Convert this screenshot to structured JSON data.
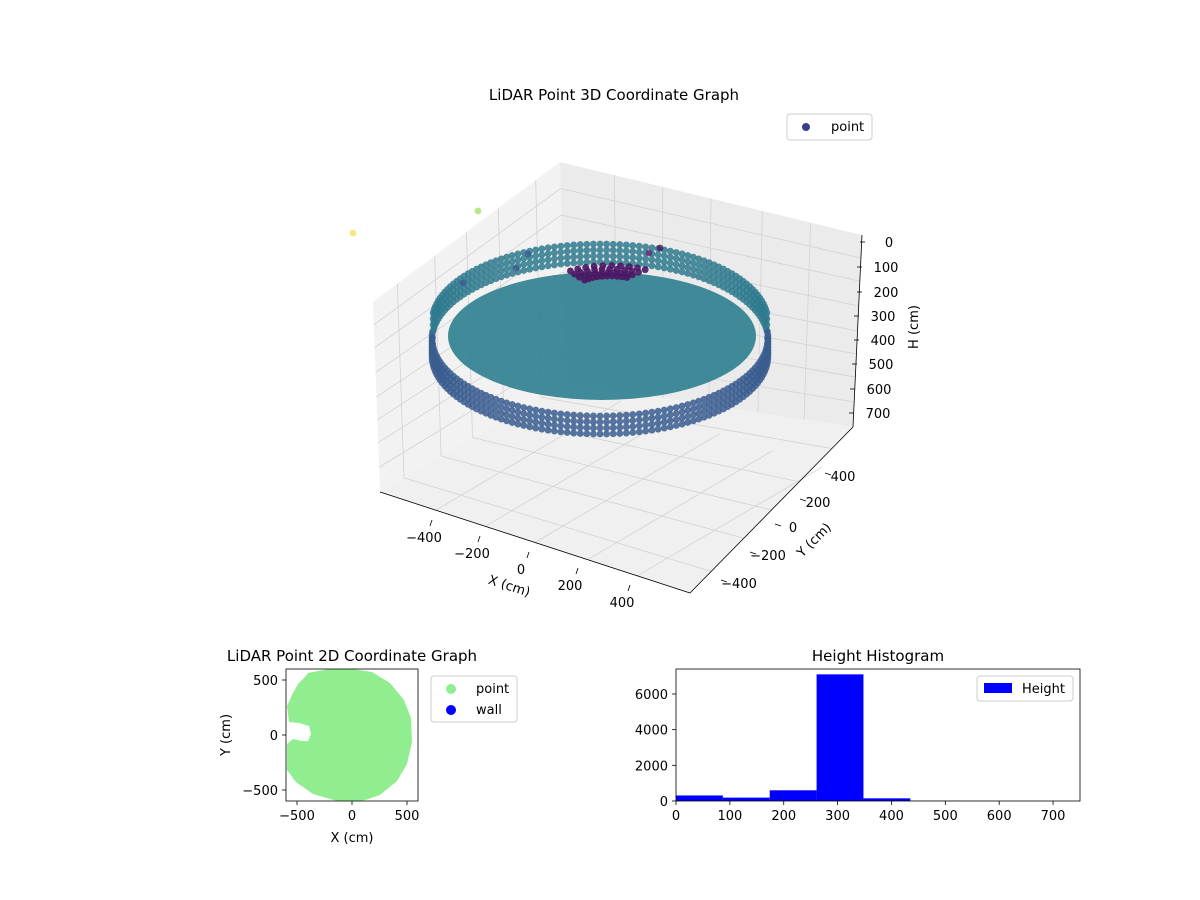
{
  "chart_data": [
    {
      "type": "scatter",
      "title": "LiDAR Point 3D Coordinate Graph",
      "xlabel": "X (cm)",
      "ylabel": "Y (cm)",
      "zlabel": "H (cm)",
      "x_ticks": [
        "−400",
        "−200",
        "0",
        "200",
        "400"
      ],
      "y_ticks": [
        "400",
        "200",
        "0",
        "−200",
        "−400"
      ],
      "z_ticks": [
        "0",
        "100",
        "200",
        "300",
        "400",
        "500",
        "600",
        "700"
      ],
      "legend": {
        "label": "point",
        "placement": "top-right",
        "color": "#3b3d8c"
      },
      "zlim": [
        0,
        700
      ],
      "colormap": "viridis",
      "grid": true
    },
    {
      "type": "scatter",
      "title": "LiDAR Point 2D Coordinate Graph",
      "xlabel": "X (cm)",
      "ylabel": "Y (cm)",
      "x_ticks": [
        "−500",
        "0",
        "500"
      ],
      "y_ticks": [
        "500",
        "0",
        "−500"
      ],
      "xlim": [
        -600,
        600
      ],
      "ylim": [
        -600,
        600
      ],
      "legend": [
        {
          "label": "point",
          "color": "#90ee90"
        },
        {
          "label": "wall",
          "color": "#0000ff"
        }
      ],
      "legend_placement": "outside-right"
    },
    {
      "type": "bar",
      "title": "Height Histogram",
      "legend": {
        "label": "Height",
        "placement": "top-right",
        "color": "#0000ff"
      },
      "x_ticks": [
        "0",
        "100",
        "200",
        "300",
        "400",
        "500",
        "600",
        "700"
      ],
      "y_ticks": [
        "0",
        "2000",
        "4000",
        "6000"
      ],
      "xlim": [
        0,
        750
      ],
      "ylim": [
        0,
        7400
      ],
      "bins": [
        {
          "x0": 0,
          "x1": 87,
          "value": 310
        },
        {
          "x0": 87,
          "x1": 174,
          "value": 190
        },
        {
          "x0": 174,
          "x1": 261,
          "value": 600
        },
        {
          "x0": 261,
          "x1": 348,
          "value": 7100
        },
        {
          "x0": 348,
          "x1": 435,
          "value": 150
        },
        {
          "x0": 435,
          "x1": 522,
          "value": 10
        },
        {
          "x0": 522,
          "x1": 609,
          "value": 5
        },
        {
          "x0": 609,
          "x1": 696,
          "value": 3
        }
      ]
    }
  ]
}
